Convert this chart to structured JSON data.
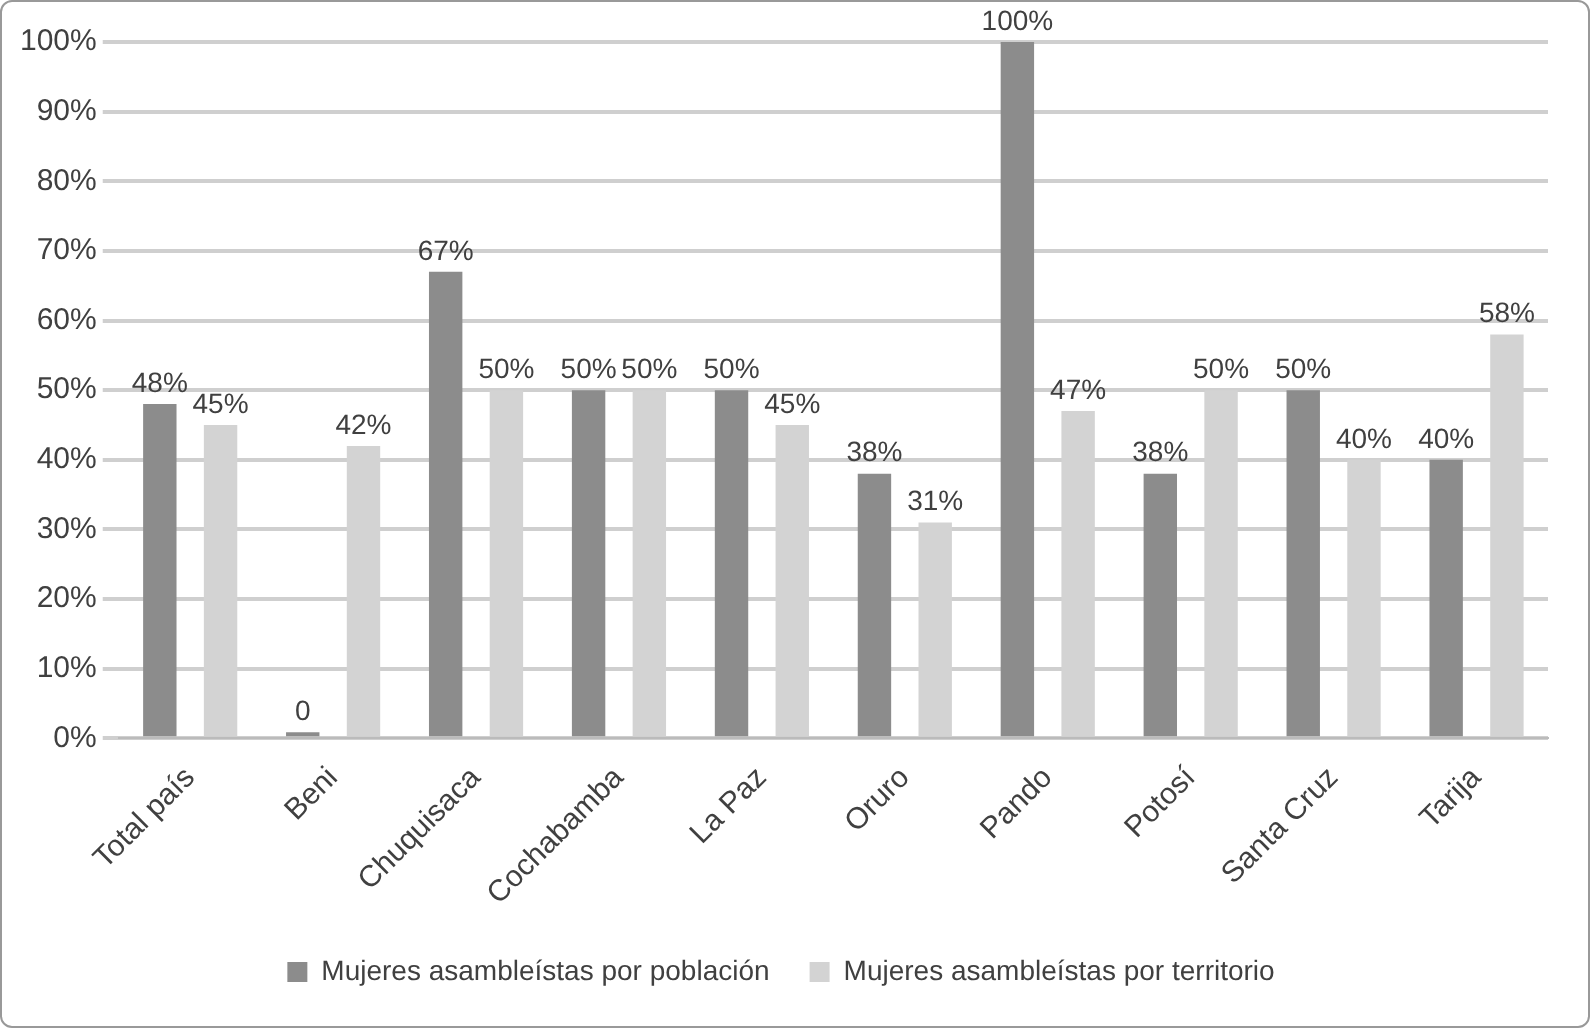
{
  "chart_data": {
    "type": "bar",
    "categories": [
      "Total país",
      "Beni",
      "Chuquisaca",
      "Cochabamba",
      "La Paz",
      "Oruro",
      "Pando",
      "Potosí",
      "Santa Cruz",
      "Tarija"
    ],
    "series": [
      {
        "name": "Mujeres asambleístas por población",
        "color": "#8c8c8c",
        "values": [
          48,
          0,
          67,
          50,
          50,
          38,
          100,
          38,
          50,
          40
        ],
        "value_labels": [
          "48%",
          "0",
          "67%",
          "50%",
          "50%",
          "38%",
          "100%",
          "38%",
          "50%",
          "40%"
        ]
      },
      {
        "name": "Mujeres asambleístas por territorio",
        "color": "#d3d3d3",
        "values": [
          45,
          42,
          50,
          50,
          45,
          31,
          47,
          50,
          40,
          58
        ],
        "value_labels": [
          "45%",
          "42%",
          "50%",
          "50%",
          "45%",
          "31%",
          "47%",
          "50%",
          "40%",
          "58%"
        ]
      }
    ],
    "ylim": [
      0,
      100
    ],
    "yticks": [
      {
        "value": 0,
        "label": "0%"
      },
      {
        "value": 10,
        "label": "10%"
      },
      {
        "value": 20,
        "label": "20%"
      },
      {
        "value": 30,
        "label": "30%"
      },
      {
        "value": 40,
        "label": "40%"
      },
      {
        "value": 50,
        "label": "50%"
      },
      {
        "value": 60,
        "label": "60%"
      },
      {
        "value": 70,
        "label": "70%"
      },
      {
        "value": 80,
        "label": "80%"
      },
      {
        "value": 90,
        "label": "90%"
      },
      {
        "value": 100,
        "label": "100%"
      }
    ],
    "grid": "y",
    "legend": "bottom"
  }
}
